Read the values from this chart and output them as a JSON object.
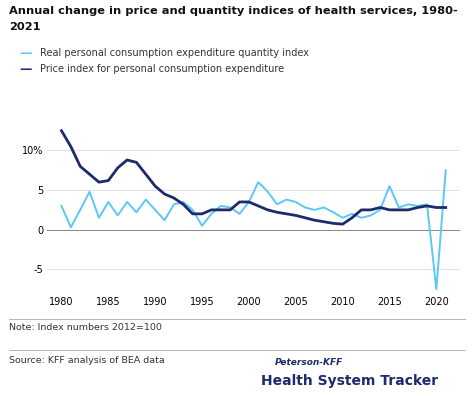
{
  "title_line1": "Annual change in price and quantity indices of health services, 1980-",
  "title_line2": "2021",
  "legend1": "Real personal consumption expenditure quantity index",
  "legend2": "Price index for personal consumption expenditure",
  "note": "Note: Index numbers 2012=100",
  "source": "Source: KFF analysis of BEA data",
  "watermark_line1": "Peterson-KFF",
  "watermark_line2": "Health System Tracker",
  "years": [
    1980,
    1981,
    1982,
    1983,
    1984,
    1985,
    1986,
    1987,
    1988,
    1989,
    1990,
    1991,
    1992,
    1993,
    1994,
    1995,
    1996,
    1997,
    1998,
    1999,
    2000,
    2001,
    2002,
    2003,
    2004,
    2005,
    2006,
    2007,
    2008,
    2009,
    2010,
    2011,
    2012,
    2013,
    2014,
    2015,
    2016,
    2017,
    2018,
    2019,
    2020,
    2021
  ],
  "quantity_index": [
    3.0,
    0.3,
    2.5,
    4.8,
    1.5,
    3.5,
    1.8,
    3.5,
    2.2,
    3.8,
    2.5,
    1.2,
    3.2,
    3.5,
    2.5,
    0.5,
    2.0,
    3.0,
    2.8,
    2.0,
    3.5,
    6.0,
    4.8,
    3.2,
    3.8,
    3.5,
    2.8,
    2.5,
    2.8,
    2.2,
    1.5,
    2.0,
    1.5,
    1.8,
    2.5,
    5.5,
    2.8,
    3.2,
    3.0,
    3.2,
    -7.5,
    7.5
  ],
  "price_index": [
    12.5,
    10.5,
    8.0,
    7.0,
    6.0,
    6.2,
    7.8,
    8.8,
    8.5,
    7.0,
    5.5,
    4.5,
    4.0,
    3.2,
    2.0,
    2.0,
    2.5,
    2.5,
    2.5,
    3.5,
    3.5,
    3.0,
    2.5,
    2.2,
    2.0,
    1.8,
    1.5,
    1.2,
    1.0,
    0.8,
    0.7,
    1.5,
    2.5,
    2.5,
    2.8,
    2.5,
    2.5,
    2.5,
    2.8,
    3.0,
    2.8,
    2.8
  ],
  "quantity_color": "#5bc8f5",
  "price_color": "#1c2b6b",
  "bg_color": "#ffffff",
  "ylim": [
    -8,
    14
  ],
  "yticks": [
    -5,
    0,
    5,
    10
  ],
  "xlim": [
    1978.5,
    2022.5
  ],
  "xticks": [
    1980,
    1985,
    1990,
    1995,
    2000,
    2005,
    2010,
    2015,
    2020
  ]
}
